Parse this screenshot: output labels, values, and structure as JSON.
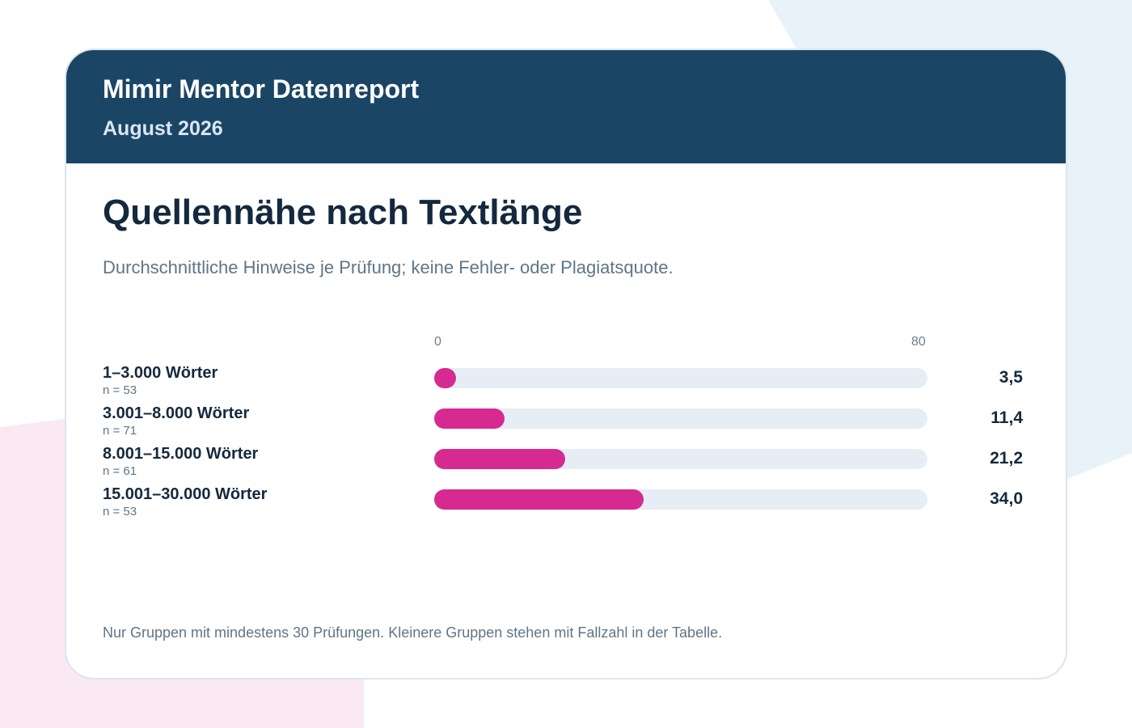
{
  "header": {
    "title": "Mimir Mentor Datenreport",
    "subtitle": "August 2026"
  },
  "main": {
    "title": "Quellennähe nach Textlänge",
    "subtitle": "Durchschnittliche Hinweise je Prüfung; keine Fehler- oder Plagiatsquote.",
    "footnote": "Nur Gruppen mit mindestens 30 Prüfungen. Kleinere Gruppen stehen mit Fallzahl in der Tabelle."
  },
  "colors": {
    "header": "#1b4565",
    "bar": "#d62a91",
    "track": "#e6edf5",
    "bg_blue": "#e7f2f9",
    "bg_pink": "#fae8f2"
  },
  "chart_data": {
    "type": "bar",
    "orientation": "horizontal",
    "title": "Quellennähe nach Textlänge",
    "subtitle": "Durchschnittliche Hinweise je Prüfung; keine Fehler- oder Plagiatsquote.",
    "axis": {
      "min": 0,
      "max": 80,
      "min_label": "0",
      "max_label": "80"
    },
    "categories": [
      "1–3.000 Wörter",
      "3.001–8.000 Wörter",
      "8.001–15.000 Wörter",
      "15.001–30.000 Wörter"
    ],
    "n_labels": [
      "n = 53",
      "n = 71",
      "n = 61",
      "n = 53"
    ],
    "values": [
      3.5,
      11.4,
      21.2,
      34.0
    ],
    "value_labels": [
      "3,5",
      "11,4",
      "21,2",
      "34,0"
    ],
    "grid": false,
    "legend": "none"
  }
}
